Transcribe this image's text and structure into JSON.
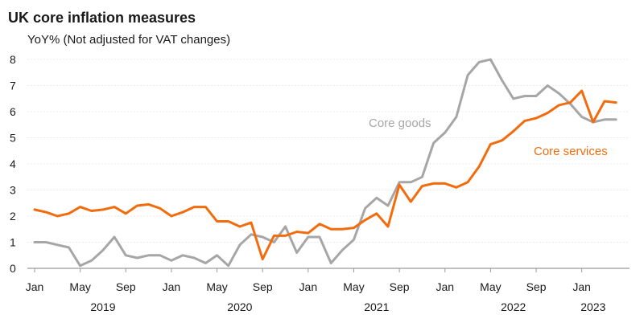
{
  "chart_data": {
    "type": "line",
    "title": "UK core inflation measures",
    "subtitle": "YoY% (Not adjusted for VAT changes)",
    "xlabel": "",
    "ylabel": "",
    "ylim": [
      0,
      8
    ],
    "y_ticks": [
      "0",
      "1",
      "2",
      "3",
      "4",
      "5",
      "6",
      "7",
      "8"
    ],
    "grid": "horizontal",
    "x_months": [
      "2019-01",
      "2019-02",
      "2019-03",
      "2019-04",
      "2019-05",
      "2019-06",
      "2019-07",
      "2019-08",
      "2019-09",
      "2019-10",
      "2019-11",
      "2019-12",
      "2020-01",
      "2020-02",
      "2020-03",
      "2020-04",
      "2020-05",
      "2020-06",
      "2020-07",
      "2020-08",
      "2020-09",
      "2020-10",
      "2020-11",
      "2020-12",
      "2021-01",
      "2021-02",
      "2021-03",
      "2021-04",
      "2021-05",
      "2021-06",
      "2021-07",
      "2021-08",
      "2021-09",
      "2021-10",
      "2021-11",
      "2021-12",
      "2022-01",
      "2022-02",
      "2022-03",
      "2022-04",
      "2022-05",
      "2022-06",
      "2022-07",
      "2022-08",
      "2022-09",
      "2022-10",
      "2022-11",
      "2022-12",
      "2023-01",
      "2023-02",
      "2023-03",
      "2023-04"
    ],
    "x_tick_labels": [
      {
        "month": "2019-01",
        "label": "Jan"
      },
      {
        "month": "2019-05",
        "label": "May"
      },
      {
        "month": "2019-09",
        "label": "Sep"
      },
      {
        "month": "2020-01",
        "label": "Jan"
      },
      {
        "month": "2020-05",
        "label": "May"
      },
      {
        "month": "2020-09",
        "label": "Sep"
      },
      {
        "month": "2021-01",
        "label": "Jan"
      },
      {
        "month": "2021-05",
        "label": "May"
      },
      {
        "month": "2021-09",
        "label": "Sep"
      },
      {
        "month": "2022-01",
        "label": "Jan"
      },
      {
        "month": "2022-05",
        "label": "May"
      },
      {
        "month": "2022-09",
        "label": "Sep"
      },
      {
        "month": "2023-01",
        "label": "Jan"
      }
    ],
    "x_year_labels": [
      {
        "month": "2019-07",
        "label": "2019"
      },
      {
        "month": "2020-07",
        "label": "2020"
      },
      {
        "month": "2021-07",
        "label": "2021"
      },
      {
        "month": "2022-07",
        "label": "2022"
      },
      {
        "month": "2023-02",
        "label": "2023"
      }
    ],
    "series": [
      {
        "name": "Core goods",
        "color": "#a6a6a6",
        "values": [
          1.0,
          1.0,
          0.9,
          0.8,
          0.1,
          0.3,
          0.7,
          1.2,
          0.5,
          0.4,
          0.5,
          0.5,
          0.3,
          0.5,
          0.4,
          0.2,
          0.5,
          0.1,
          0.9,
          1.3,
          1.2,
          1.0,
          1.6,
          0.6,
          1.2,
          1.2,
          0.2,
          0.7,
          1.1,
          2.3,
          2.7,
          2.4,
          3.3,
          3.3,
          3.5,
          4.8,
          5.2,
          5.8,
          7.4,
          7.9,
          8.0,
          7.2,
          6.5,
          6.6,
          6.6,
          7.0,
          6.7,
          6.3,
          5.8,
          5.6,
          5.7,
          5.7
        ]
      },
      {
        "name": "Core services",
        "color": "#f26c0d",
        "values": [
          2.25,
          2.15,
          2.0,
          2.1,
          2.35,
          2.2,
          2.25,
          2.35,
          2.1,
          2.4,
          2.45,
          2.3,
          2.0,
          2.15,
          2.35,
          2.35,
          1.8,
          1.8,
          1.6,
          1.75,
          0.35,
          1.25,
          1.25,
          1.4,
          1.35,
          1.7,
          1.5,
          1.5,
          1.55,
          1.85,
          2.1,
          1.6,
          3.2,
          2.55,
          3.15,
          3.25,
          3.25,
          3.1,
          3.3,
          3.9,
          4.75,
          4.9,
          5.25,
          5.65,
          5.75,
          5.95,
          6.25,
          6.35,
          6.8,
          5.6,
          6.4,
          6.35
        ]
      }
    ]
  }
}
